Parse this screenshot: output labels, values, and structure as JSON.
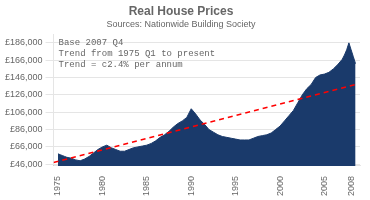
{
  "chart_data": {
    "type": "area",
    "title": "Real House Prices",
    "subtitle": "Sources: Nationwide Building Society",
    "annotations": [
      "Base 2007 Q4",
      "Trend from 1975 Q1 to present",
      "Trend = c2.4% per annum"
    ],
    "series": [
      {
        "type": "area",
        "color": "#1a3a6b",
        "x": [
          1975.0,
          1975.25,
          1975.5,
          1975.75,
          1976.0,
          1976.5,
          1977.0,
          1977.5,
          1978.0,
          1978.5,
          1979.0,
          1979.5,
          1980.0,
          1980.5,
          1981.0,
          1981.5,
          1982.0,
          1982.5,
          1983.0,
          1983.5,
          1984.0,
          1984.5,
          1985.0,
          1985.5,
          1986.0,
          1986.5,
          1987.0,
          1987.5,
          1988.0,
          1988.5,
          1989.0,
          1989.5,
          1990.0,
          1990.5,
          1991.0,
          1991.5,
          1992.0,
          1992.5,
          1993.0,
          1993.5,
          1994.0,
          1994.5,
          1995.0,
          1995.5,
          1996.0,
          1996.5,
          1997.0,
          1997.5,
          1998.0,
          1998.5,
          1999.0,
          1999.5,
          2000.0,
          2000.5,
          2001.0,
          2001.5,
          2002.0,
          2002.5,
          2003.0,
          2003.5,
          2004.0,
          2004.5,
          2005.0,
          2005.5,
          2006.0,
          2006.5,
          2007.0,
          2007.25,
          2007.5,
          2007.75,
          2008.0,
          2008.25,
          2008.5
        ],
        "values": [
          58000,
          57000,
          56000,
          55000,
          54000,
          53000,
          51000,
          50000,
          52000,
          55000,
          59000,
          63000,
          66000,
          68000,
          65000,
          63000,
          61000,
          61000,
          63000,
          65000,
          66000,
          67000,
          68000,
          70000,
          73000,
          77000,
          80000,
          84000,
          89000,
          93000,
          96000,
          100000,
          110000,
          104000,
          97000,
          92000,
          86000,
          83000,
          80000,
          78000,
          77000,
          76000,
          75000,
          74000,
          74000,
          74000,
          76000,
          78000,
          79000,
          80000,
          82000,
          86000,
          90000,
          96000,
          102000,
          108000,
          117000,
          126000,
          133000,
          138000,
          146000,
          149000,
          150000,
          152000,
          156000,
          161000,
          167000,
          172000,
          178000,
          186000,
          178000,
          170000,
          162000
        ]
      },
      {
        "type": "line",
        "color": "red",
        "line_style": "dashed",
        "x": [
          1974.5,
          2008.5
        ],
        "values": [
          48000,
          138000
        ]
      }
    ],
    "xlim": [
      1974.5,
      2009.0
    ],
    "xticks": [
      1975,
      1980,
      1985,
      1990,
      1995,
      2000,
      2005,
      2008
    ],
    "ylim": [
      44000,
      196000
    ],
    "yticks": [
      {
        "value": 186000,
        "label": "£186,000"
      },
      {
        "value": 166000,
        "label": "£166,000"
      },
      {
        "value": 146000,
        "label": "£146,000"
      },
      {
        "value": 126000,
        "label": "£126,000"
      },
      {
        "value": 106000,
        "label": "£106,000"
      },
      {
        "value": 86000,
        "label": "£86,000"
      },
      {
        "value": 66000,
        "label": "£66,000"
      },
      {
        "value": 46000,
        "label": "£46,000"
      }
    ],
    "grid": "y"
  }
}
